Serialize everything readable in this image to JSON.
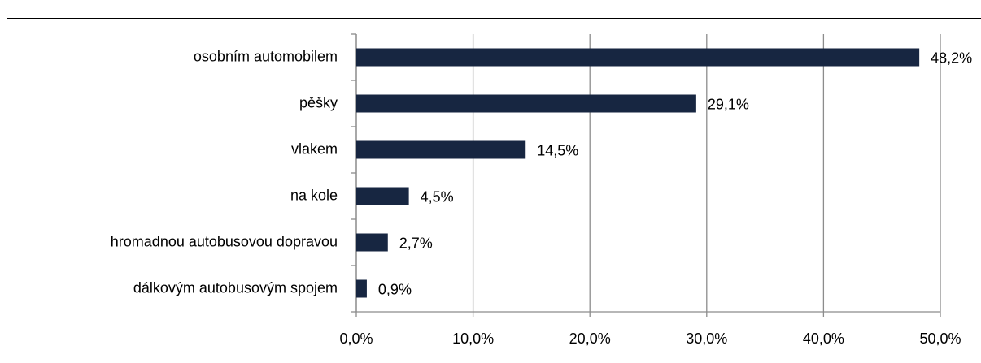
{
  "chart_data": {
    "type": "bar",
    "orientation": "horizontal",
    "categories": [
      "osobním automobilem",
      "pěšky",
      "vlakem",
      "na kole",
      "hromadnou autobusovou dopravou",
      "dálkovým autobusovým spojem"
    ],
    "values": [
      48.2,
      29.1,
      14.5,
      4.5,
      2.7,
      0.9
    ],
    "value_labels": [
      "48,2%",
      "29,1%",
      "14,5%",
      "4,5%",
      "2,7%",
      "0,9%"
    ],
    "color": "#172641",
    "xlim": [
      0,
      50
    ],
    "xticks": [
      {
        "value": 0,
        "label": "0,0%"
      },
      {
        "value": 10,
        "label": "10,0%"
      },
      {
        "value": 20,
        "label": "20,0%"
      },
      {
        "value": 30,
        "label": "30,0%"
      },
      {
        "value": 40,
        "label": "40,0%"
      },
      {
        "value": 50,
        "label": "50,0%"
      }
    ],
    "grid": true
  }
}
